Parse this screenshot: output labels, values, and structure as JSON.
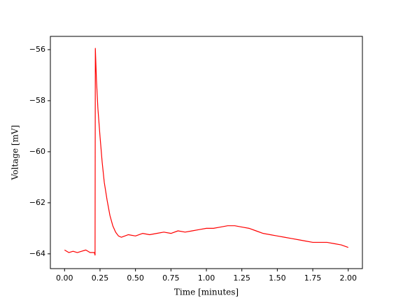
{
  "chart_data": {
    "type": "line",
    "x_label": "Time [minutes]",
    "y_label": "Voltage [mV]",
    "x": [
      0.0,
      0.03,
      0.06,
      0.09,
      0.12,
      0.15,
      0.18,
      0.21,
      0.215,
      0.217,
      0.225,
      0.235,
      0.25,
      0.265,
      0.28,
      0.3,
      0.32,
      0.34,
      0.36,
      0.38,
      0.4,
      0.45,
      0.5,
      0.55,
      0.6,
      0.65,
      0.7,
      0.75,
      0.8,
      0.85,
      0.9,
      0.95,
      1.0,
      1.05,
      1.1,
      1.15,
      1.2,
      1.25,
      1.3,
      1.35,
      1.4,
      1.45,
      1.5,
      1.55,
      1.6,
      1.65,
      1.7,
      1.75,
      1.8,
      1.85,
      1.9,
      1.95,
      2.0
    ],
    "series": [
      {
        "name": "Voltage",
        "color": "#ff0000",
        "values": [
          -63.85,
          -63.95,
          -63.9,
          -63.95,
          -63.9,
          -63.85,
          -63.95,
          -63.95,
          -64.05,
          -55.95,
          -57.2,
          -58.3,
          -59.4,
          -60.4,
          -61.2,
          -61.9,
          -62.5,
          -62.9,
          -63.15,
          -63.3,
          -63.35,
          -63.25,
          -63.3,
          -63.2,
          -63.25,
          -63.2,
          -63.15,
          -63.2,
          -63.1,
          -63.15,
          -63.1,
          -63.05,
          -63.0,
          -63.0,
          -62.95,
          -62.9,
          -62.9,
          -62.95,
          -63.0,
          -63.1,
          -63.2,
          -63.25,
          -63.3,
          -63.35,
          -63.4,
          -63.45,
          -63.5,
          -63.55,
          -63.55,
          -63.55,
          -63.6,
          -63.65,
          -63.75
        ]
      }
    ],
    "xlim": [
      -0.1,
      2.1
    ],
    "ylim": [
      -64.58,
      -55.48
    ],
    "xticks": [
      {
        "value": 0,
        "label": "0.00"
      },
      {
        "value": 0.25,
        "label": "0.25"
      },
      {
        "value": 0.5,
        "label": "0.50"
      },
      {
        "value": 0.75,
        "label": "0.75"
      },
      {
        "value": 1,
        "label": "1.00"
      },
      {
        "value": 1.25,
        "label": "1.25"
      },
      {
        "value": 1.5,
        "label": "1.50"
      },
      {
        "value": 1.75,
        "label": "1.75"
      },
      {
        "value": 2,
        "label": "2.00"
      }
    ],
    "yticks": [
      {
        "value": -64,
        "label": "−64"
      },
      {
        "value": -62,
        "label": "−62"
      },
      {
        "value": -60,
        "label": "−60"
      },
      {
        "value": -58,
        "label": "−58"
      },
      {
        "value": -56,
        "label": "−56"
      }
    ],
    "grid": false
  }
}
